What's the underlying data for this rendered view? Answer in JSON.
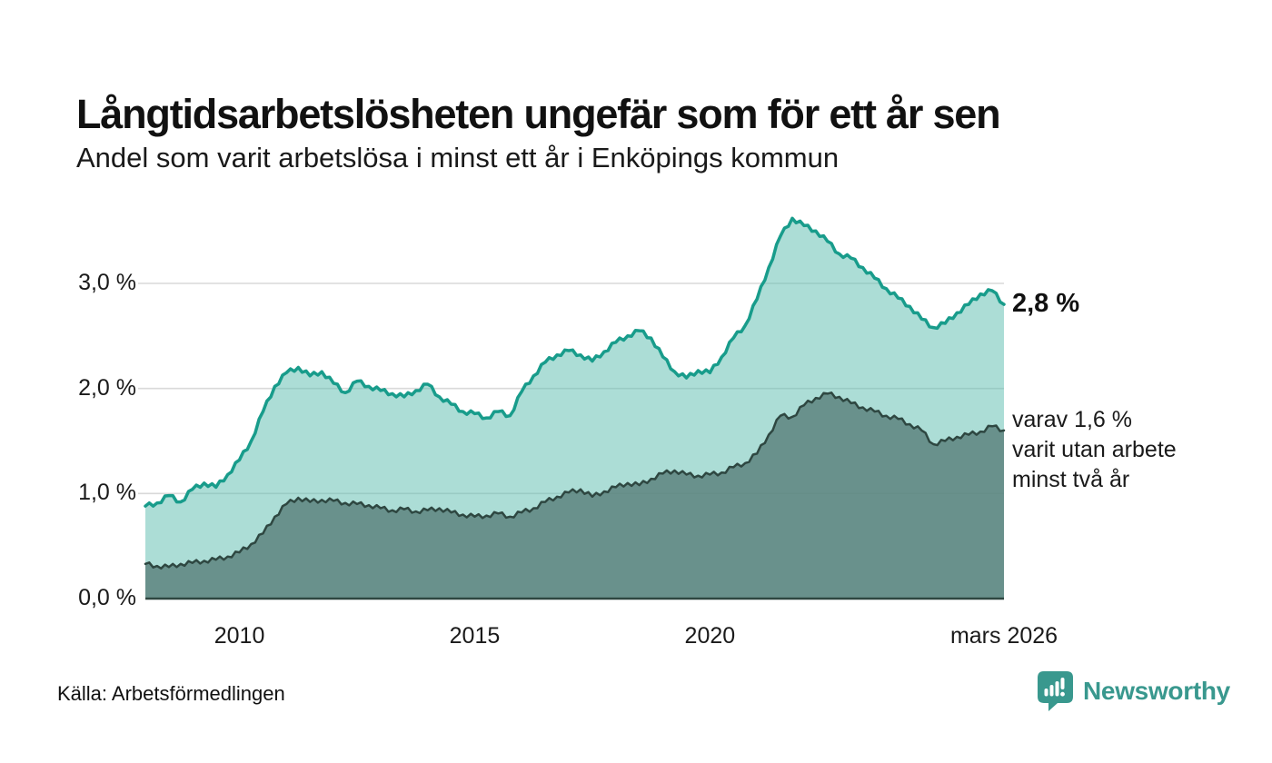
{
  "header": {
    "title": "Långtidsarbetslösheten ungefär som för ett år sen",
    "subtitle": "Andel som varit arbetslösa i minst ett år i Enköpings kommun"
  },
  "chart_data": {
    "type": "area",
    "title": "Långtidsarbetslösheten ungefär som för ett år sen",
    "subtitle": "Andel som varit arbetslösa i minst ett år i Enköpings kommun",
    "unit": "%",
    "xlim": [
      2008,
      2026.25
    ],
    "ylim": [
      0,
      3.8
    ],
    "grid": "horizontal",
    "legend_position": "right-annotations",
    "x": [
      2008,
      2008.25,
      2008.5,
      2008.75,
      2009,
      2009.25,
      2009.5,
      2009.75,
      2010,
      2010.25,
      2010.5,
      2010.75,
      2011,
      2011.25,
      2011.5,
      2011.75,
      2012,
      2012.25,
      2012.5,
      2012.75,
      2013,
      2013.25,
      2013.5,
      2013.75,
      2014,
      2014.25,
      2014.5,
      2014.75,
      2015,
      2015.25,
      2015.5,
      2015.75,
      2016,
      2016.25,
      2016.5,
      2016.75,
      2017,
      2017.25,
      2017.5,
      2017.75,
      2018,
      2018.25,
      2018.5,
      2018.75,
      2019,
      2019.25,
      2019.5,
      2019.75,
      2020,
      2020.25,
      2020.5,
      2020.75,
      2021,
      2021.25,
      2021.5,
      2021.75,
      2022,
      2022.25,
      2022.5,
      2022.75,
      2023,
      2023.25,
      2023.5,
      2023.75,
      2024,
      2024.25,
      2024.5,
      2024.75,
      2025,
      2025.25,
      2025.5,
      2025.75,
      2026,
      2026.25
    ],
    "series": [
      {
        "name": "Andel som varit arbetslösa minst ett år",
        "stroke": "#189c8b",
        "fill": "rgba(95,189,176,0.52)",
        "stroke_width": 3.5,
        "values": [
          0.88,
          0.91,
          0.98,
          0.92,
          1.04,
          1.1,
          1.06,
          1.18,
          1.32,
          1.5,
          1.78,
          2.02,
          2.15,
          2.2,
          2.12,
          2.16,
          2.05,
          1.96,
          2.07,
          2.02,
          1.98,
          1.95,
          1.92,
          1.98,
          2.04,
          1.92,
          1.85,
          1.78,
          1.76,
          1.72,
          1.78,
          1.74,
          1.97,
          2.12,
          2.25,
          2.32,
          2.36,
          2.32,
          2.26,
          2.35,
          2.44,
          2.5,
          2.55,
          2.48,
          2.3,
          2.16,
          2.1,
          2.17,
          2.15,
          2.3,
          2.48,
          2.6,
          2.85,
          3.15,
          3.45,
          3.62,
          3.55,
          3.5,
          3.4,
          3.28,
          3.24,
          3.15,
          3.05,
          2.95,
          2.86,
          2.78,
          2.66,
          2.58,
          2.62,
          2.72,
          2.8,
          2.9,
          2.93,
          2.8
        ],
        "latest_value": "2,8 %"
      },
      {
        "name": "varav utan arbete minst två år",
        "stroke": "#2e4741",
        "fill": "rgba(89,126,121,0.80)",
        "stroke_width": 2.5,
        "values": [
          0.33,
          0.31,
          0.3,
          0.33,
          0.34,
          0.36,
          0.37,
          0.4,
          0.44,
          0.52,
          0.62,
          0.78,
          0.9,
          0.96,
          0.92,
          0.94,
          0.93,
          0.91,
          0.9,
          0.89,
          0.86,
          0.84,
          0.85,
          0.83,
          0.84,
          0.86,
          0.82,
          0.8,
          0.78,
          0.79,
          0.81,
          0.78,
          0.82,
          0.86,
          0.92,
          0.97,
          1.01,
          1.04,
          0.97,
          1.02,
          1.06,
          1.1,
          1.08,
          1.14,
          1.19,
          1.22,
          1.18,
          1.17,
          1.18,
          1.2,
          1.25,
          1.29,
          1.38,
          1.56,
          1.74,
          1.73,
          1.84,
          1.91,
          1.95,
          1.92,
          1.86,
          1.82,
          1.78,
          1.74,
          1.71,
          1.66,
          1.6,
          1.47,
          1.5,
          1.54,
          1.56,
          1.59,
          1.64,
          1.6
        ],
        "latest_value": "1,6 %"
      }
    ],
    "yticks": [
      {
        "value": 0,
        "label": "0,0 %"
      },
      {
        "value": 1,
        "label": "1,0 %"
      },
      {
        "value": 2,
        "label": "2,0 %"
      },
      {
        "value": 3,
        "label": "3,0 %"
      }
    ],
    "xticks": [
      {
        "value": 2010,
        "label": "2010"
      },
      {
        "value": 2015,
        "label": "2015"
      },
      {
        "value": 2020,
        "label": "2020"
      },
      {
        "value": 2026.25,
        "label": "mars 2026"
      }
    ],
    "annotations": {
      "latest": "2,8 %",
      "secondary": [
        "varav 1,6 %",
        "varit utan arbete",
        "minst två år"
      ]
    },
    "colors": {
      "gridline": "#d9d9d9",
      "baseline": "#2e4741",
      "accent_teal": "#189c8b",
      "dark_teal": "#2e4741"
    }
  },
  "footer": {
    "source": "Källa: Arbetsförmedlingen",
    "logo_text": "Newsworthy",
    "logo_color": "#39988e"
  }
}
